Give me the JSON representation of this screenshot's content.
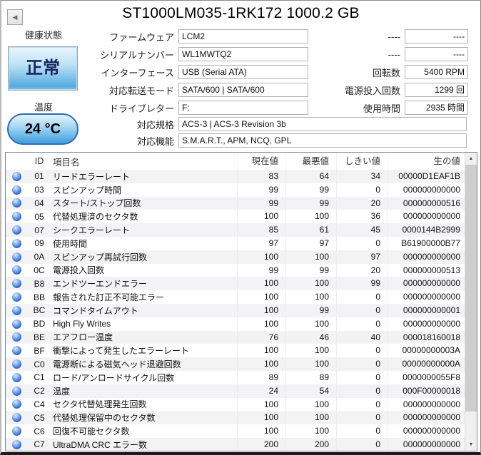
{
  "window": {
    "title": "ST1000LM035-1RK172 1000.2 GB",
    "back_icon": "◀"
  },
  "health": {
    "label": "健康状態",
    "status": "正常",
    "temp_label": "温度",
    "temp_value": "24 °C"
  },
  "colors": {
    "health_good_blue": "#47a3e1",
    "status_orb_blue": "#2f62c8"
  },
  "info_fields": [
    {
      "label": "ファームウェア",
      "value": "LCM2"
    },
    {
      "label": "シリアルナンバー",
      "value": "WL1MWTQ2"
    },
    {
      "label": "インターフェース",
      "value": "USB (Serial ATA)"
    },
    {
      "label": "対応転送モード",
      "value": "SATA/600 | SATA/600"
    },
    {
      "label": "ドライブレター",
      "value": "F:"
    }
  ],
  "wide_fields": [
    {
      "label": "対応規格",
      "value": "ACS-3 | ACS-3 Revision 3b"
    },
    {
      "label": "対応機能",
      "value": "S.M.A.R.T., APM, NCQ, GPL"
    }
  ],
  "right_fields": [
    {
      "label": "----",
      "value": "----"
    },
    {
      "label": "----",
      "value": "----"
    },
    {
      "label": "回転数",
      "value": "5400 RPM"
    },
    {
      "label": "電源投入回数",
      "value": "1299 回"
    },
    {
      "label": "使用時間",
      "value": "2935 時間"
    }
  ],
  "smart": {
    "columns": [
      "ID",
      "項目名",
      "現在値",
      "最悪値",
      "しきい値",
      "生の値"
    ],
    "rows": [
      {
        "id": "01",
        "name": "リードエラーレート",
        "current": "83",
        "worst": "64",
        "threshold": "34",
        "raw": "00000D1EAF1B"
      },
      {
        "id": "03",
        "name": "スピンアップ時間",
        "current": "99",
        "worst": "99",
        "threshold": "0",
        "raw": "000000000000"
      },
      {
        "id": "04",
        "name": "スタート/ストップ回数",
        "current": "99",
        "worst": "99",
        "threshold": "20",
        "raw": "000000000516"
      },
      {
        "id": "05",
        "name": "代替処理済のセクタ数",
        "current": "100",
        "worst": "100",
        "threshold": "36",
        "raw": "000000000000"
      },
      {
        "id": "07",
        "name": "シークエラーレート",
        "current": "85",
        "worst": "61",
        "threshold": "45",
        "raw": "0000144B2999"
      },
      {
        "id": "09",
        "name": "使用時間",
        "current": "97",
        "worst": "97",
        "threshold": "0",
        "raw": "B61900000B77"
      },
      {
        "id": "0A",
        "name": "スピンアップ再試行回数",
        "current": "100",
        "worst": "100",
        "threshold": "97",
        "raw": "000000000000"
      },
      {
        "id": "0C",
        "name": "電源投入回数",
        "current": "99",
        "worst": "99",
        "threshold": "20",
        "raw": "000000000513"
      },
      {
        "id": "B8",
        "name": "エンドツーエンドエラー",
        "current": "100",
        "worst": "100",
        "threshold": "99",
        "raw": "000000000000"
      },
      {
        "id": "BB",
        "name": "報告された訂正不可能エラー",
        "current": "100",
        "worst": "100",
        "threshold": "0",
        "raw": "000000000000"
      },
      {
        "id": "BC",
        "name": "コマンドタイムアウト",
        "current": "100",
        "worst": "99",
        "threshold": "0",
        "raw": "000000000001"
      },
      {
        "id": "BD",
        "name": "High Fly Writes",
        "current": "100",
        "worst": "100",
        "threshold": "0",
        "raw": "000000000000"
      },
      {
        "id": "BE",
        "name": "エアフロー温度",
        "current": "76",
        "worst": "46",
        "threshold": "40",
        "raw": "000018160018"
      },
      {
        "id": "BF",
        "name": "衝撃によって発生したエラーレート",
        "current": "100",
        "worst": "100",
        "threshold": "0",
        "raw": "00000000003A"
      },
      {
        "id": "C0",
        "name": "電源断による磁気ヘッド退避回数",
        "current": "100",
        "worst": "100",
        "threshold": "0",
        "raw": "00000000000A"
      },
      {
        "id": "C1",
        "name": "ロード/アンロードサイクル回数",
        "current": "89",
        "worst": "89",
        "threshold": "0",
        "raw": "0000000055F8"
      },
      {
        "id": "C2",
        "name": "温度",
        "current": "24",
        "worst": "54",
        "threshold": "0",
        "raw": "000F00000018"
      },
      {
        "id": "C4",
        "name": "セクタ代替処理発生回数",
        "current": "100",
        "worst": "100",
        "threshold": "0",
        "raw": "000000000000"
      },
      {
        "id": "C5",
        "name": "代替処理保留中のセクタ数",
        "current": "100",
        "worst": "100",
        "threshold": "0",
        "raw": "000000000000"
      },
      {
        "id": "C6",
        "name": "回復不可能セクタ数",
        "current": "100",
        "worst": "100",
        "threshold": "0",
        "raw": "000000000000"
      },
      {
        "id": "C7",
        "name": "UltraDMA CRC エラー数",
        "current": "200",
        "worst": "200",
        "threshold": "0",
        "raw": "000000000000"
      }
    ]
  },
  "scrollbar": {
    "up_icon": "▲",
    "down_icon": "▼"
  }
}
